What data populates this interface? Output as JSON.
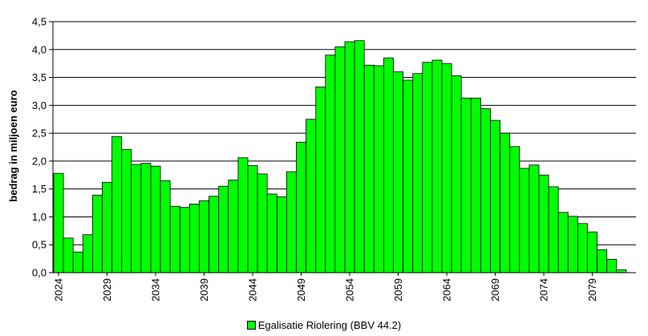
{
  "chart_data": {
    "type": "bar",
    "ylabel": "bedrag in miljoen euro",
    "ylim": [
      0,
      4.5
    ],
    "ytick_step": 0.5,
    "ytick_labels": [
      "0,0",
      "0,5",
      "1,0",
      "1,5",
      "2,0",
      "2,5",
      "3,0",
      "3,5",
      "4,0",
      "4,5"
    ],
    "x_years": [
      2024,
      2025,
      2026,
      2027,
      2028,
      2029,
      2030,
      2031,
      2032,
      2033,
      2034,
      2035,
      2036,
      2037,
      2038,
      2039,
      2040,
      2041,
      2042,
      2043,
      2044,
      2045,
      2046,
      2047,
      2048,
      2049,
      2050,
      2051,
      2052,
      2053,
      2054,
      2055,
      2056,
      2057,
      2058,
      2059,
      2060,
      2061,
      2062,
      2063,
      2064,
      2065,
      2066,
      2067,
      2068,
      2069,
      2070,
      2071,
      2072,
      2073,
      2074,
      2075,
      2076,
      2077,
      2078,
      2079,
      2080,
      2081,
      2082
    ],
    "xtick_labels": [
      "2024",
      "2029",
      "2034",
      "2039",
      "2044",
      "2049",
      "2054",
      "2059",
      "2064",
      "2069",
      "2074",
      "2079"
    ],
    "grid": "horizontal",
    "legend_position": "bottom",
    "series": [
      {
        "name": "Egalisatie Riolering (BBV 44.2)",
        "color": "#00ff00",
        "values": [
          1.78,
          0.62,
          0.37,
          0.68,
          1.39,
          1.62,
          2.44,
          2.21,
          1.94,
          1.96,
          1.91,
          1.65,
          1.19,
          1.17,
          1.23,
          1.29,
          1.37,
          1.55,
          1.66,
          2.06,
          1.92,
          1.77,
          1.41,
          1.36,
          1.81,
          2.34,
          2.75,
          3.33,
          3.9,
          4.05,
          4.14,
          4.16,
          3.72,
          3.71,
          3.85,
          3.6,
          3.45,
          3.57,
          3.77,
          3.81,
          3.75,
          3.53,
          3.13,
          3.13,
          2.94,
          2.73,
          2.5,
          2.26,
          1.87,
          1.93,
          1.75,
          1.54,
          1.08,
          1.01,
          0.88,
          0.73,
          0.41,
          0.24,
          0.05
        ]
      }
    ]
  }
}
